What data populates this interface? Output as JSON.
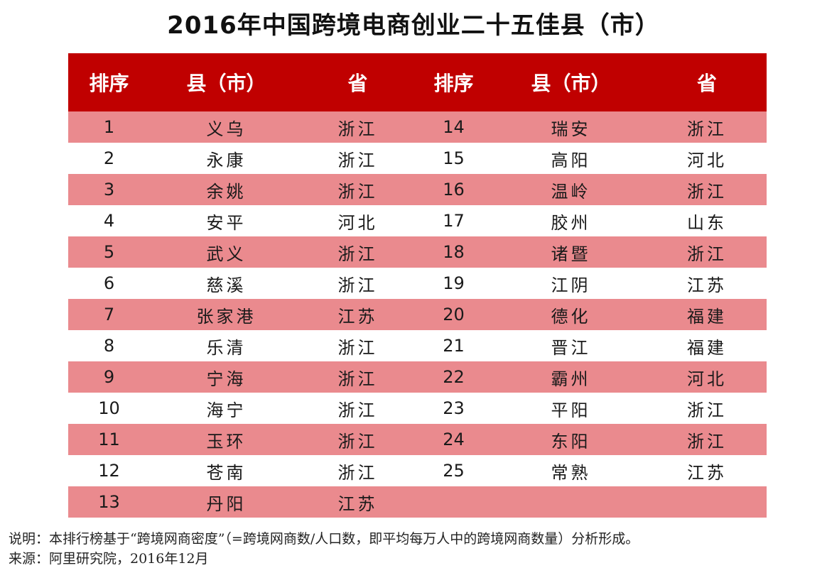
{
  "title": "2016年中国跨境电商创业二十五佳县（市）",
  "table": {
    "headers": [
      "排序",
      "县（市）",
      "省",
      "排序",
      "县（市）",
      "省"
    ],
    "rows": [
      {
        "left": [
          "1",
          "义乌",
          "浙江"
        ],
        "right": [
          "14",
          "瑞安",
          "浙江"
        ]
      },
      {
        "left": [
          "2",
          "永康",
          "浙江"
        ],
        "right": [
          "15",
          "高阳",
          "河北"
        ]
      },
      {
        "left": [
          "3",
          "余姚",
          "浙江"
        ],
        "right": [
          "16",
          "温岭",
          "浙江"
        ]
      },
      {
        "left": [
          "4",
          "安平",
          "河北"
        ],
        "right": [
          "17",
          "胶州",
          "山东"
        ]
      },
      {
        "left": [
          "5",
          "武义",
          "浙江"
        ],
        "right": [
          "18",
          "诸暨",
          "浙江"
        ]
      },
      {
        "left": [
          "6",
          "慈溪",
          "浙江"
        ],
        "right": [
          "19",
          "江阴",
          "江苏"
        ]
      },
      {
        "left": [
          "7",
          "张家港",
          "江苏"
        ],
        "right": [
          "20",
          "德化",
          "福建"
        ]
      },
      {
        "left": [
          "8",
          "乐清",
          "浙江"
        ],
        "right": [
          "21",
          "晋江",
          "福建"
        ]
      },
      {
        "left": [
          "9",
          "宁海",
          "浙江"
        ],
        "right": [
          "22",
          "霸州",
          "河北"
        ]
      },
      {
        "left": [
          "10",
          "海宁",
          "浙江"
        ],
        "right": [
          "23",
          "平阳",
          "浙江"
        ]
      },
      {
        "left": [
          "11",
          "玉环",
          "浙江"
        ],
        "right": [
          "24",
          "东阳",
          "浙江"
        ]
      },
      {
        "left": [
          "12",
          "苍南",
          "浙江"
        ],
        "right": [
          "25",
          "常熟",
          "江苏"
        ]
      },
      {
        "left": [
          "13",
          "丹阳",
          "江苏"
        ],
        "right": [
          "",
          "",
          ""
        ]
      }
    ]
  },
  "notes": {
    "explanation": "说明：本排行榜基于“跨境网商密度”（=跨境网商数/人口数，即平均每万人中的跨境网商数量）分析形成。",
    "source": "来源：阿里研究院，2016年12月"
  },
  "colors": {
    "header_bg": "#c00000",
    "shaded_row": "#ea8a8e",
    "plain_row": "#ffffff"
  }
}
